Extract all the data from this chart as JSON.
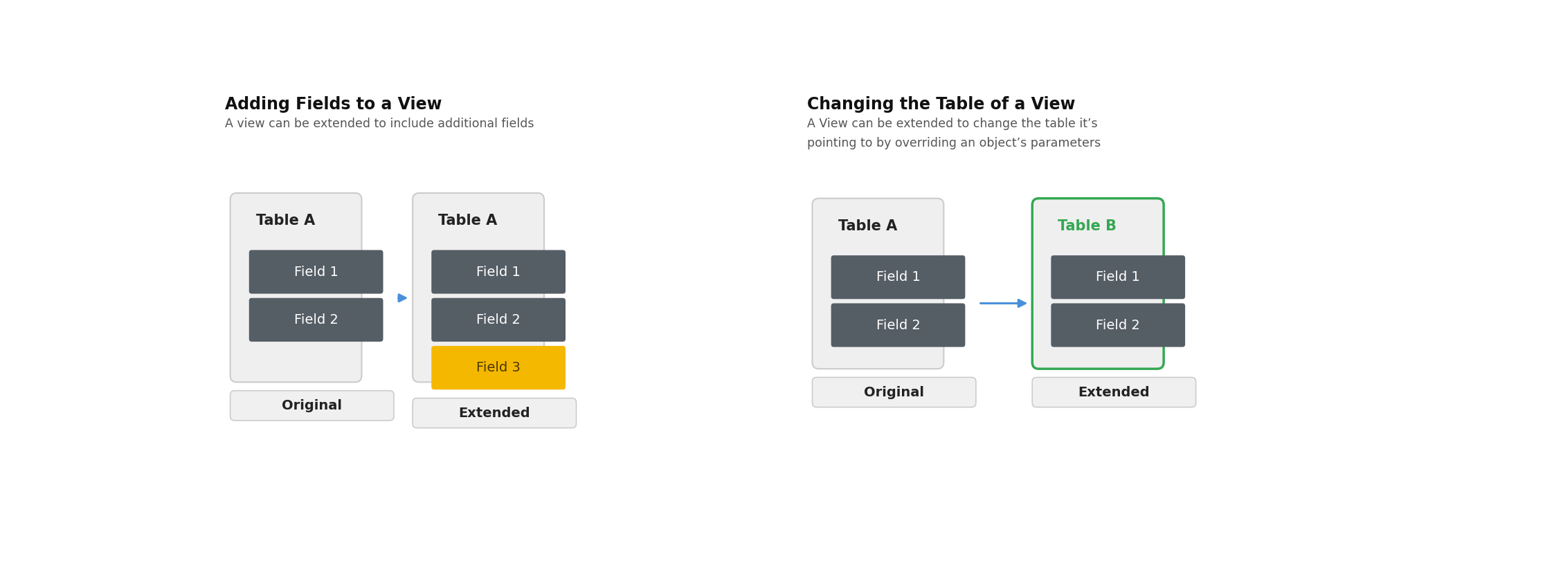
{
  "bg_color": "#ffffff",
  "field_box_color": "#555d65",
  "field_text_color": "#ffffff",
  "table_bg_color": "#efefef",
  "table_border_color": "#cccccc",
  "label_box_color": "#f0f0f0",
  "label_border_color": "#cccccc",
  "arrow_color": "#4a90d9",
  "yellow_color": "#f5b800",
  "yellow_text_color": "#4a3800",
  "green_color": "#34a853",
  "diagram1_title": "Adding Fields to a View",
  "diagram1_subtitle": "A view can be extended to include additional fields",
  "diagram2_title": "Changing the Table of a View",
  "diagram2_subtitle_line1": "A View can be extended to change the table it’s",
  "diagram2_subtitle_line2": "pointing to by overriding an object’s parameters",
  "title_fontsize": 17,
  "subtitle_fontsize": 12.5,
  "table_label_fontsize": 15,
  "field_fontsize": 14,
  "caption_fontsize": 14,
  "fig_width": 22.58,
  "fig_height": 8.24
}
